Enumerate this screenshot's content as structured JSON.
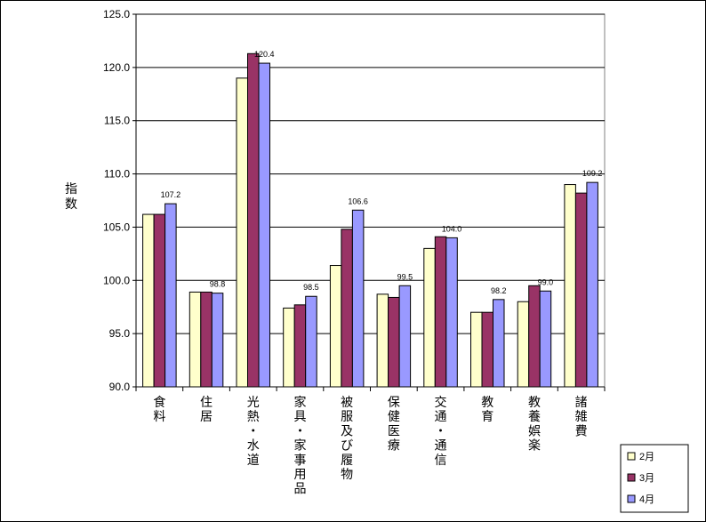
{
  "chart_data": {
    "type": "bar",
    "ylabel": "指数",
    "ylim": [
      90,
      125
    ],
    "yticks": [
      "90.0",
      "95.0",
      "100.0",
      "105.0",
      "110.0",
      "115.0",
      "120.0",
      "125.0"
    ],
    "grid": true,
    "legend_position": "bottom-right",
    "categories": [
      "食料",
      "住居",
      "光熱・水道",
      "家具・家事用品",
      "被服及び履物",
      "保健医療",
      "交通・通信",
      "教育",
      "教養娯楽",
      "諸雑費"
    ],
    "series": [
      {
        "name": "2月",
        "color": "#FFFFCC",
        "values": [
          106.2,
          98.9,
          119.0,
          97.4,
          101.4,
          98.7,
          103.0,
          97.0,
          98.0,
          109.0
        ]
      },
      {
        "name": "3月",
        "color": "#993366",
        "values": [
          106.2,
          98.9,
          121.3,
          97.7,
          104.8,
          98.4,
          104.1,
          97.0,
          99.5,
          108.2
        ]
      },
      {
        "name": "4月",
        "color": "#9999FF",
        "values": [
          107.2,
          98.8,
          120.4,
          98.5,
          106.6,
          99.5,
          104.0,
          98.2,
          99.0,
          109.2
        ]
      }
    ],
    "data_labels": {
      "series_index": 2,
      "values": [
        "107.2",
        "98.8",
        "120.4",
        "98.5",
        "106.6",
        "99.5",
        "104.0",
        "98.2",
        "99.0",
        "109.2"
      ]
    }
  }
}
